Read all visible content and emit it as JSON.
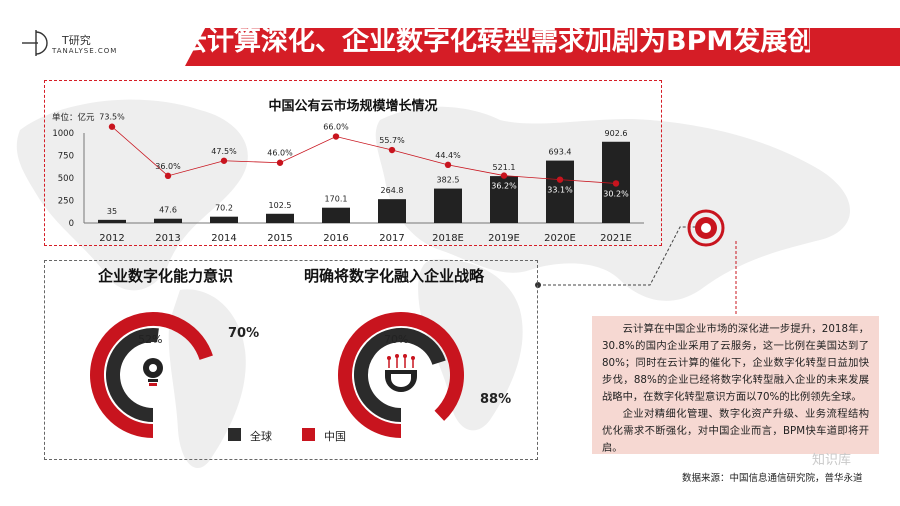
{
  "brand": {
    "name_cn": "T研究",
    "name_en": "TANALYSE.COM"
  },
  "header": {
    "title": "云计算深化、企业数字化转型需求加剧为BPM发展创造机遇"
  },
  "chart_data": [
    {
      "type": "bar",
      "title": "中国公有云市场规模增长情况",
      "unit_label": "单位：亿元",
      "categories": [
        "2012",
        "2013",
        "2014",
        "2015",
        "2016",
        "2017",
        "2018E",
        "2019E",
        "2020E",
        "2021E"
      ],
      "values": [
        35,
        47.6,
        70.2,
        102.5,
        170.1,
        264.8,
        382.5,
        521.1,
        693.4,
        902.6
      ],
      "value_labels": [
        "35",
        "47.6",
        "70.2",
        "102.5",
        "170.1",
        "264.8",
        "382.5",
        "521.1",
        "693.4",
        "902.6"
      ],
      "growth_rates": [
        73.5,
        36.0,
        47.5,
        46.0,
        66.0,
        55.7,
        44.4,
        36.2,
        33.1,
        30.2
      ],
      "growth_labels": [
        "73.5%",
        "36.0%",
        "47.5%",
        "46.0%",
        "66.0%",
        "55.7%",
        "44.4%",
        "36.2%",
        "33.1%",
        "30.2%"
      ],
      "yticks": [
        "0",
        "250",
        "500",
        "750",
        "1000"
      ],
      "ylim": [
        0,
        1000
      ],
      "growth_range": [
        0,
        100
      ],
      "bar_color": "#222222",
      "line_color": "#c8141e"
    },
    {
      "type": "pie",
      "title": "企业数字化能力意识",
      "series": [
        {
          "name": "全球",
          "value": 52,
          "label": "52%"
        },
        {
          "name": "中国",
          "value": 70,
          "label": "70%"
        }
      ]
    },
    {
      "type": "pie",
      "title": "明确将数字化融入企业战略",
      "series": [
        {
          "name": "全球",
          "value": 70,
          "label": "70%"
        },
        {
          "name": "中国",
          "value": 88,
          "label": "88%"
        }
      ]
    }
  ],
  "legend": {
    "global": "全球",
    "china": "中国",
    "global_color": "#2b2b2b",
    "china_color": "#c8141e"
  },
  "summary": {
    "p1": "云计算在中国企业市场的深化进一步提升，2018年，30.8%的国内企业采用了云服务，这一比例在美国达到了80%；同时在云计算的催化下，企业数字化转型日益加快步伐，88%的企业已经将数字化转型融入企业的未来发展战略中，在数字化转型意识方面以70%的比例领先全球。",
    "p2": "企业对精细化管理、数字化资产升级、业务流程结构优化需求不断强化，对中国企业而言，BPM快车道即将开启。"
  },
  "source": "数据来源：中国信息通信研究院，普华永道",
  "watermark": "知识库"
}
